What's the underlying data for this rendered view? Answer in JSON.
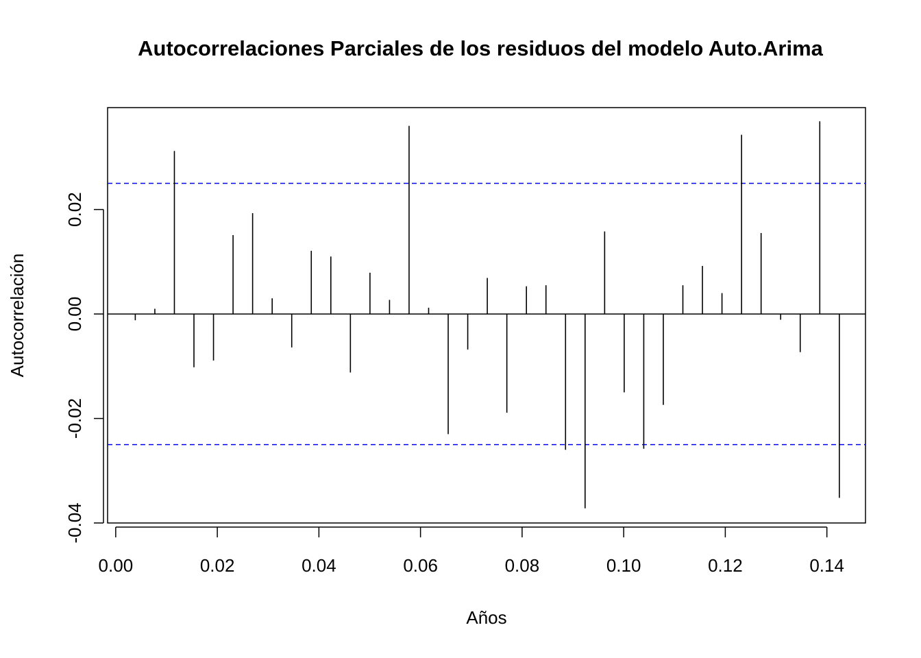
{
  "chart_data": {
    "type": "bar",
    "title": "Autocorrelaciones Parciales de los residuos del modelo Auto.Arima",
    "xlabel": "Años",
    "ylabel": "Autocorrelación",
    "xlim": [
      -0.0016,
      0.1476
    ],
    "ylim": [
      -0.04,
      0.0395
    ],
    "x_ticks": [
      "0.00",
      "0.02",
      "0.04",
      "0.06",
      "0.08",
      "0.10",
      "0.12",
      "0.14"
    ],
    "y_ticks": [
      "-0.04",
      "-0.02",
      "0.00",
      "0.02"
    ],
    "confidence_bound": 0.025,
    "grid": false,
    "colors": {
      "bars": "#000000",
      "bounds": "#0000ff",
      "zero_line": "#000000"
    },
    "series": [
      {
        "x": [
          0.00385,
          0.0077,
          0.01155,
          0.0154,
          0.01925,
          0.0231,
          0.02695,
          0.0308,
          0.03465,
          0.0385,
          0.04235,
          0.0462,
          0.05005,
          0.0539,
          0.05775,
          0.0616,
          0.06545,
          0.0693,
          0.07315,
          0.077,
          0.08085,
          0.0847,
          0.08855,
          0.0924,
          0.09625,
          0.1001,
          0.10395,
          0.1078,
          0.11165,
          0.1155,
          0.11935,
          0.1232,
          0.12705,
          0.1309,
          0.13475,
          0.1386,
          0.14245
        ],
        "values": [
          -0.0012,
          0.001,
          0.0312,
          -0.0102,
          -0.0089,
          0.0151,
          0.0193,
          0.003,
          -0.0064,
          0.0121,
          0.011,
          -0.0112,
          0.0079,
          0.0027,
          0.036,
          0.0012,
          -0.023,
          -0.0068,
          0.0069,
          -0.0189,
          0.0053,
          0.0055,
          -0.026,
          -0.0372,
          0.0158,
          -0.015,
          -0.0258,
          -0.0174,
          0.0055,
          0.0092,
          0.004,
          0.0343,
          0.0155,
          -0.0011,
          -0.0073,
          0.0369,
          -0.0352
        ]
      }
    ]
  }
}
